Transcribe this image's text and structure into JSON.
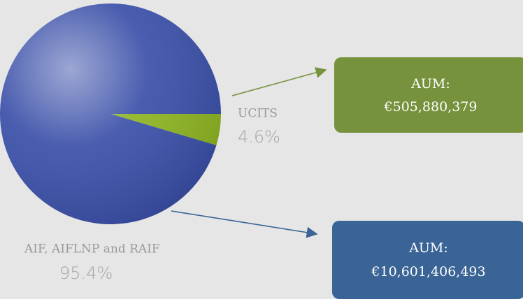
{
  "chart_data": {
    "type": "pie",
    "categories": [
      "UCITS",
      "AIF, AIFLNP and RAIF"
    ],
    "values": [
      4.6,
      95.4
    ],
    "value_labels": [
      "4.6%",
      "95.4%"
    ],
    "colors": [
      "#8db421",
      "#3a4fa8"
    ],
    "annotations": {
      "aum_title": "AUM:",
      "aum_values": [
        "€505,880,379",
        "€10,601,406,493"
      ]
    }
  }
}
